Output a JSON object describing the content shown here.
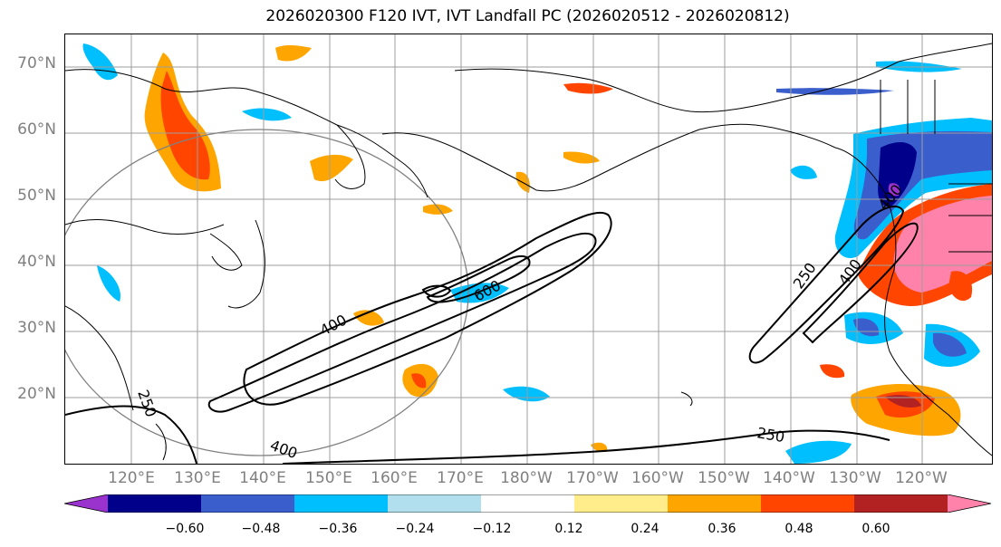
{
  "title": "2026020300 F120 IVT, IVT Landfall PC (2026020512 - 2026020812)",
  "lat_labels": [
    "70°N",
    "60°N",
    "50°N",
    "40°N",
    "30°N",
    "20°N"
  ],
  "lon_labels": [
    "120°E",
    "130°E",
    "140°E",
    "150°E",
    "160°E",
    "170°E",
    "180°W",
    "170°W",
    "160°W",
    "150°W",
    "140°W",
    "130°W",
    "120°W"
  ],
  "contour_labels": [
    "400",
    "600",
    "400",
    "250",
    "250",
    "400",
    "250",
    "400"
  ],
  "colorbar": {
    "ticks": [
      "−0.60",
      "−0.48",
      "−0.36",
      "−0.24",
      "−0.12",
      "0.12",
      "0.24",
      "0.36",
      "0.48",
      "0.60"
    ],
    "colors": [
      "#9a32cd",
      "#00008b",
      "#3a5fcd",
      "#00bfff",
      "#b2dfee",
      "#ffffff",
      "#ffec8b",
      "#ffa500",
      "#ff4500",
      "#b22222",
      "#ff82ab"
    ]
  },
  "colors": {
    "purple": "#9a32cd",
    "navy": "#00008b",
    "royal": "#3a5fcd",
    "sky": "#00bfff",
    "pale_blue": "#b2dfee",
    "yellow": "#ffec8b",
    "orange": "#ffa500",
    "red_orange": "#ff4500",
    "firebrick": "#b22222",
    "pink": "#ff82ab"
  }
}
